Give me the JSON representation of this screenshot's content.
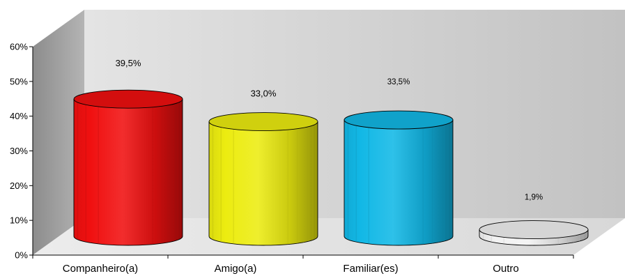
{
  "chart_data": {
    "type": "bar",
    "style": "3d-cylinder",
    "categories": [
      "Companheiro(a)",
      "Amigo(a)",
      "Familiar(es)",
      "Outro"
    ],
    "values": [
      39.5,
      33.0,
      33.5,
      1.9
    ],
    "data_labels": [
      "39,5%",
      "33,0%",
      "33,5%",
      "1,9%"
    ],
    "bar_colors": [
      "#f01010",
      "#ecec10",
      "#12b8e6",
      "#f2f2f2"
    ],
    "ylim": [
      0,
      60
    ],
    "yticks": [
      0,
      10,
      20,
      30,
      40,
      50,
      60
    ],
    "ytick_labels": [
      "0%",
      "10%",
      "20%",
      "30%",
      "40%",
      "50%",
      "60%"
    ],
    "title": "",
    "xlabel": "",
    "ylabel": "",
    "grid": false,
    "legend": "none"
  }
}
